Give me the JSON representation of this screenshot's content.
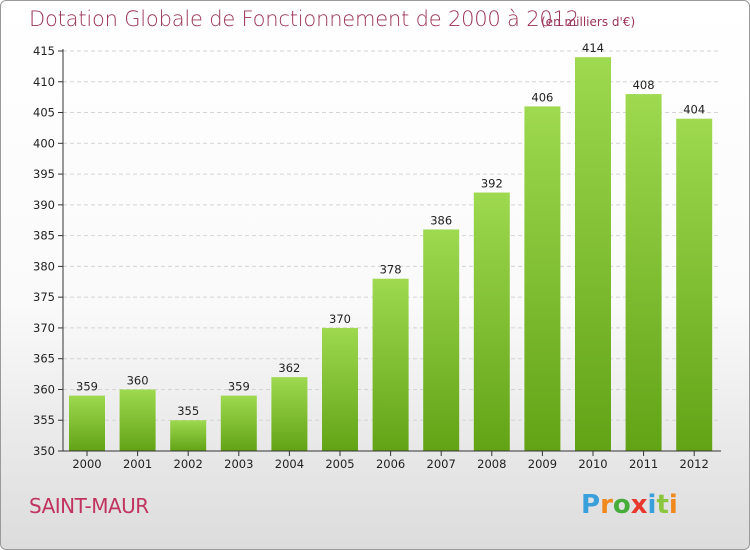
{
  "header": {
    "title": "Dotation Globale de Fonctionnement de 2000 à 2012",
    "subtitle": "(en milliers d'€)"
  },
  "commune": "SAINT-MAUR",
  "logo": {
    "text": "Proxiti",
    "letter_colors": [
      "#3aa0dc",
      "#f08a1e",
      "#46ad3a",
      "#e8382e",
      "#3aa0dc",
      "#8cc63e",
      "#f08a1e"
    ]
  },
  "colors": {
    "bar_top": "#9ed94f",
    "bar_bottom": "#62a316",
    "grid": "#d4d4d4",
    "axis": "#333333",
    "title": "#9b3355"
  },
  "chart_data": {
    "type": "bar",
    "title": "Dotation Globale de Fonctionnement de 2000 à 2012",
    "subtitle": "(en milliers d'€)",
    "categories": [
      "2000",
      "2001",
      "2002",
      "2003",
      "2004",
      "2005",
      "2006",
      "2007",
      "2008",
      "2009",
      "2010",
      "2011",
      "2012"
    ],
    "values": [
      359,
      360,
      355,
      359,
      362,
      370,
      378,
      386,
      392,
      406,
      414,
      408,
      404
    ],
    "ylim": [
      350,
      415
    ],
    "yticks": [
      350,
      355,
      360,
      365,
      370,
      375,
      380,
      385,
      390,
      395,
      400,
      405,
      410,
      415
    ],
    "grid": "horizontal dashed",
    "xlabel": "",
    "ylabel": ""
  }
}
